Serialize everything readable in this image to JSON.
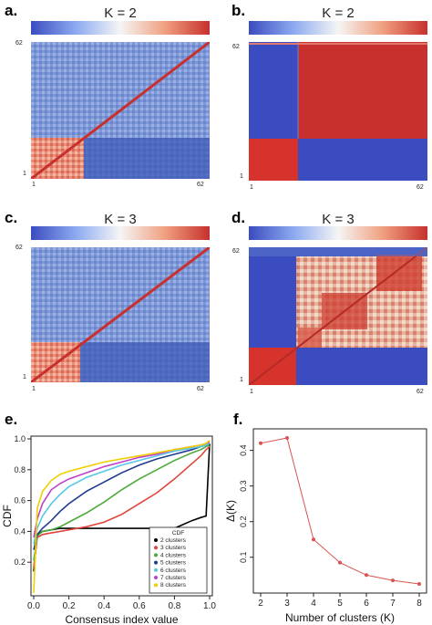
{
  "panels": {
    "a": {
      "letter": "a.",
      "title": "K = 2",
      "tick_low": "1",
      "tick_high": "62"
    },
    "b": {
      "letter": "b.",
      "title": "K = 2",
      "tick_low": "1",
      "tick_high": "62"
    },
    "c": {
      "letter": "c.",
      "title": "K = 3",
      "tick_low": "1",
      "tick_high": "62"
    },
    "d": {
      "letter": "d.",
      "title": "K = 3",
      "tick_low": "1",
      "tick_high": "62"
    },
    "e": {
      "letter": "e."
    },
    "f": {
      "letter": "f."
    }
  },
  "colors": {
    "low": "#3b4cc0",
    "mid": "#f5f5f5",
    "high": "#c7302c",
    "delta_line": "#d9534f"
  },
  "chart_data": [
    {
      "type": "heatmap",
      "panel": "b",
      "title": "K = 2",
      "n_samples": 62,
      "clusters": [
        {
          "start": 1,
          "end": 17,
          "value": 1
        },
        {
          "start": 18,
          "end": 62,
          "value": 1
        }
      ],
      "between_value": 0
    },
    {
      "type": "line",
      "panel": "e",
      "title": "",
      "xlabel": "Consensus index value",
      "ylabel": "CDF",
      "xlim": [
        0,
        1
      ],
      "ylim": [
        0,
        1
      ],
      "xticks": [
        "0.0",
        "0.2",
        "0.4",
        "0.6",
        "0.8",
        "1.0"
      ],
      "yticks": [
        "0.2",
        "0.4",
        "0.6",
        "0.8",
        "1.0"
      ],
      "legend_title": "CDF",
      "legend_position": "bottom-right",
      "x": [
        0,
        0.02,
        0.05,
        0.1,
        0.15,
        0.2,
        0.3,
        0.4,
        0.5,
        0.6,
        0.7,
        0.8,
        0.9,
        0.95,
        0.98,
        1.0
      ],
      "series": [
        {
          "name": "2 clusters",
          "color": "#000000",
          "values": [
            0.14,
            0.38,
            0.4,
            0.41,
            0.42,
            0.42,
            0.42,
            0.42,
            0.42,
            0.42,
            0.42,
            0.42,
            0.47,
            0.49,
            0.5,
            0.97
          ]
        },
        {
          "name": "3 clusters",
          "color": "#e0453a",
          "values": [
            0.17,
            0.36,
            0.38,
            0.39,
            0.4,
            0.41,
            0.43,
            0.46,
            0.51,
            0.58,
            0.65,
            0.74,
            0.84,
            0.89,
            0.93,
            0.95
          ]
        },
        {
          "name": "4 clusters",
          "color": "#4daa3a",
          "values": [
            0.21,
            0.37,
            0.4,
            0.41,
            0.43,
            0.46,
            0.52,
            0.59,
            0.67,
            0.74,
            0.8,
            0.86,
            0.91,
            0.93,
            0.95,
            0.96
          ]
        },
        {
          "name": "5 clusters",
          "color": "#1f3b8f",
          "values": [
            0.28,
            0.38,
            0.42,
            0.47,
            0.53,
            0.58,
            0.66,
            0.72,
            0.78,
            0.83,
            0.87,
            0.9,
            0.93,
            0.95,
            0.96,
            0.97
          ]
        },
        {
          "name": "6 clusters",
          "color": "#56c8e8",
          "values": [
            0.32,
            0.42,
            0.5,
            0.58,
            0.64,
            0.69,
            0.75,
            0.79,
            0.83,
            0.86,
            0.89,
            0.92,
            0.94,
            0.95,
            0.96,
            0.97
          ]
        },
        {
          "name": "7 clusters",
          "color": "#c040c8",
          "values": [
            0.36,
            0.48,
            0.58,
            0.67,
            0.71,
            0.74,
            0.78,
            0.82,
            0.85,
            0.88,
            0.9,
            0.93,
            0.95,
            0.96,
            0.97,
            0.98
          ]
        },
        {
          "name": "8 clusters",
          "color": "#f0d000",
          "values": [
            0.0,
            0.55,
            0.66,
            0.73,
            0.77,
            0.79,
            0.82,
            0.85,
            0.87,
            0.89,
            0.91,
            0.93,
            0.95,
            0.96,
            0.97,
            0.99
          ]
        }
      ]
    },
    {
      "type": "line",
      "panel": "f",
      "title": "",
      "xlabel": "Number of clusters (K)",
      "ylabel": "Δ(K)",
      "x": [
        2,
        3,
        4,
        5,
        6,
        7,
        8
      ],
      "values": [
        0.42,
        0.435,
        0.15,
        0.085,
        0.05,
        0.035,
        0.025
      ],
      "xlim": [
        2,
        8
      ],
      "ylim": [
        0,
        0.45
      ],
      "xticks": [
        "2",
        "3",
        "4",
        "5",
        "6",
        "7",
        "8"
      ],
      "yticks": [
        "0.1",
        "0.2",
        "0.3",
        "0.4"
      ]
    }
  ]
}
